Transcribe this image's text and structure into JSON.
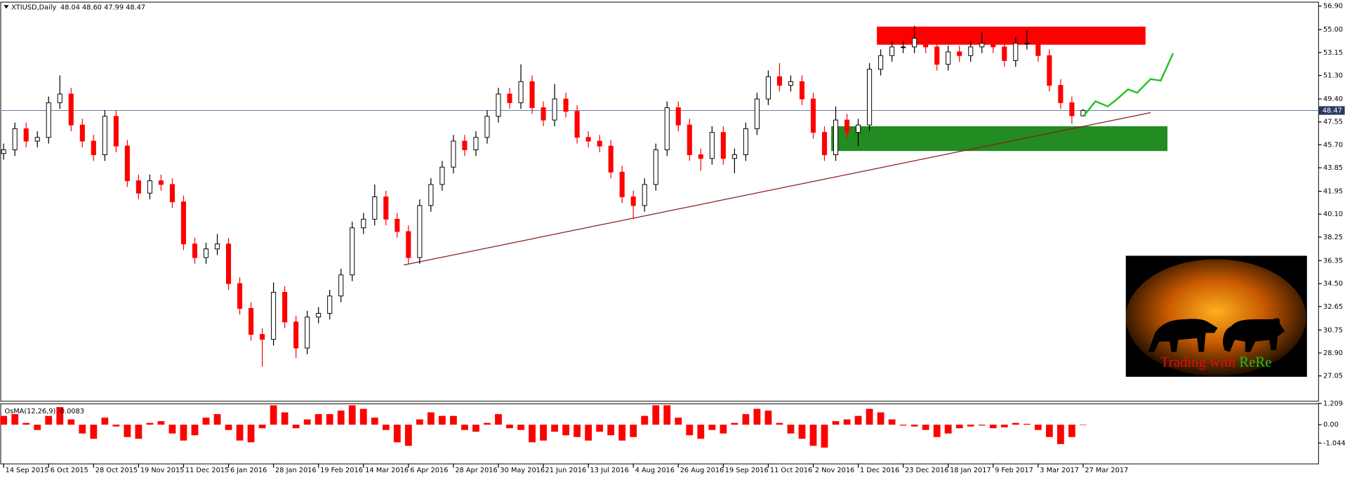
{
  "chart_data": [
    {
      "type": "candlestick",
      "title": "XTIUSD,Daily",
      "subtitle": "48.04 48.60 47.99 48.47",
      "bull_color": "#000000",
      "bear_color": "#ff0000",
      "open": [
        45.0,
        45.3,
        47.0,
        46.0,
        46.3,
        49.1,
        49.8,
        47.3,
        46.0,
        44.9,
        48.0,
        45.6,
        42.8,
        41.8,
        42.8,
        42.5,
        41.1,
        37.7,
        36.6,
        37.3,
        37.7,
        34.5,
        32.5,
        30.4,
        30.0,
        33.8,
        31.4,
        29.3,
        31.8,
        32.1,
        33.5,
        35.2,
        39.0,
        39.7,
        41.5,
        39.7,
        38.7,
        36.6,
        40.8,
        42.5,
        43.9,
        46.0,
        45.3,
        46.3,
        48.0,
        49.8,
        49.1,
        50.8,
        48.7,
        47.7,
        49.4,
        48.4,
        46.3,
        46.0,
        45.6,
        43.5,
        41.5,
        40.8,
        42.5,
        45.3,
        48.7,
        47.3,
        44.9,
        44.6,
        46.7,
        44.6,
        44.9,
        47.0,
        49.4,
        51.2,
        50.5,
        50.8,
        49.4,
        46.7,
        44.9,
        47.7,
        46.7,
        47.3,
        51.8,
        52.9,
        53.6,
        53.6,
        54.3,
        53.6,
        52.2,
        53.2,
        52.9,
        53.6,
        53.9,
        53.6,
        52.5,
        53.9,
        53.9,
        52.9,
        50.5,
        49.1,
        48.04
      ],
      "high": [
        45.8,
        47.5,
        47.5,
        46.8,
        49.6,
        51.3,
        50.3,
        47.8,
        46.5,
        48.5,
        48.5,
        46.1,
        43.3,
        43.3,
        43.3,
        43.0,
        41.6,
        38.2,
        37.8,
        38.5,
        38.2,
        35.0,
        33.0,
        30.9,
        34.6,
        34.3,
        31.9,
        32.3,
        32.6,
        34.0,
        35.7,
        39.5,
        40.2,
        42.5,
        42.0,
        40.2,
        39.2,
        41.3,
        43.0,
        44.4,
        46.5,
        46.5,
        46.8,
        48.5,
        50.3,
        50.3,
        52.2,
        51.3,
        49.2,
        50.6,
        49.9,
        48.9,
        46.8,
        46.5,
        46.1,
        44.0,
        42.0,
        43.0,
        45.8,
        49.2,
        49.2,
        47.8,
        45.4,
        47.2,
        47.2,
        45.4,
        47.5,
        49.9,
        51.7,
        52.3,
        51.3,
        51.3,
        49.9,
        47.2,
        48.8,
        48.2,
        47.8,
        52.3,
        53.4,
        54.1,
        54.1,
        55.3,
        54.8,
        54.1,
        53.7,
        53.7,
        54.1,
        54.8,
        54.4,
        54.1,
        54.4,
        55.0,
        54.4,
        53.4,
        51.0,
        49.6,
        48.6
      ],
      "low": [
        44.5,
        44.8,
        45.5,
        45.5,
        45.8,
        48.6,
        46.8,
        45.5,
        44.4,
        44.4,
        45.1,
        42.3,
        41.3,
        41.3,
        42.0,
        40.6,
        37.2,
        36.1,
        36.1,
        36.8,
        34.0,
        32.0,
        29.9,
        27.8,
        29.5,
        30.9,
        28.5,
        28.8,
        31.3,
        31.6,
        33.0,
        34.7,
        38.5,
        39.2,
        39.2,
        38.2,
        36.1,
        36.1,
        40.3,
        42.0,
        43.4,
        44.8,
        44.8,
        45.8,
        47.5,
        48.6,
        48.6,
        48.2,
        47.2,
        47.2,
        47.9,
        45.8,
        45.5,
        45.1,
        43.0,
        41.0,
        39.7,
        40.3,
        42.0,
        44.8,
        46.8,
        44.4,
        43.6,
        44.1,
        44.1,
        43.4,
        44.4,
        46.5,
        48.9,
        50.0,
        50.0,
        48.9,
        46.2,
        44.4,
        44.4,
        46.2,
        45.6,
        46.8,
        51.3,
        52.4,
        53.1,
        53.1,
        53.1,
        51.7,
        51.7,
        52.4,
        52.4,
        53.1,
        53.1,
        52.0,
        52.0,
        53.4,
        52.4,
        50.0,
        48.6,
        47.4,
        47.99
      ],
      "close": [
        45.3,
        47.0,
        46.0,
        46.3,
        49.1,
        49.8,
        47.3,
        46.0,
        44.9,
        48.0,
        45.6,
        42.8,
        41.8,
        42.8,
        42.5,
        41.1,
        37.7,
        36.6,
        37.3,
        37.7,
        34.5,
        32.5,
        30.4,
        30.0,
        33.8,
        31.4,
        29.3,
        31.8,
        32.1,
        33.5,
        35.2,
        39.0,
        39.7,
        41.5,
        39.7,
        38.7,
        36.6,
        40.8,
        42.5,
        43.9,
        46.0,
        45.3,
        46.3,
        48.0,
        49.8,
        49.1,
        50.8,
        48.7,
        47.7,
        49.4,
        48.4,
        46.3,
        46.0,
        45.6,
        43.5,
        41.5,
        40.8,
        42.5,
        45.3,
        48.7,
        47.3,
        44.9,
        44.6,
        46.7,
        44.6,
        44.9,
        47.0,
        49.4,
        51.2,
        50.5,
        50.8,
        49.4,
        46.7,
        44.9,
        47.7,
        46.7,
        47.3,
        51.8,
        52.9,
        53.6,
        53.6,
        54.3,
        53.6,
        52.2,
        53.2,
        52.9,
        53.6,
        53.9,
        53.6,
        52.5,
        53.9,
        53.9,
        52.9,
        50.5,
        49.1,
        48.04,
        48.47
      ],
      "xlim": [
        -0.3,
        116.9
      ],
      "xticks": [
        {
          "value": 0,
          "label": "14 Sep 2015"
        },
        {
          "value": 4,
          "label": "6 Oct 2015"
        },
        {
          "value": 8,
          "label": "28 Oct 2015"
        },
        {
          "value": 12,
          "label": "19 Nov 2015"
        },
        {
          "value": 16,
          "label": "11 Dec 2015"
        },
        {
          "value": 20,
          "label": "6 Jan 2016"
        },
        {
          "value": 24,
          "label": "28 Jan 2016"
        },
        {
          "value": 28,
          "label": "19 Feb 2016"
        },
        {
          "value": 32,
          "label": "14 Mar 2016"
        },
        {
          "value": 36,
          "label": "6 Apr 2016"
        },
        {
          "value": 40,
          "label": "28 Apr 2016"
        },
        {
          "value": 44,
          "label": "30 May 2016"
        },
        {
          "value": 48,
          "label": "21 Jun 2016"
        },
        {
          "value": 52,
          "label": "13 Jul 2016"
        },
        {
          "value": 56,
          "label": "4 Aug 2016"
        },
        {
          "value": 60,
          "label": "26 Aug 2016"
        },
        {
          "value": 64,
          "label": "19 Sep 2016"
        },
        {
          "value": 68,
          "label": "11 Oct 2016"
        },
        {
          "value": 72,
          "label": "2 Nov 2016"
        },
        {
          "value": 76,
          "label": "1 Dec 2016"
        },
        {
          "value": 80,
          "label": "23 Dec 2016"
        },
        {
          "value": 84,
          "label": "18 Jan 2017"
        },
        {
          "value": 88,
          "label": "9 Feb 2017"
        },
        {
          "value": 92,
          "label": "3 Mar 2017"
        },
        {
          "value": 96,
          "label": "27 Mar 2017"
        }
      ],
      "ylim": [
        25.04,
        57.25
      ],
      "yticks": [
        {
          "value": 56.9,
          "label": "56.90"
        },
        {
          "value": 55,
          "label": "55.00"
        },
        53.15,
        {
          "value": 51.3,
          "label": "51.30"
        },
        {
          "value": 49.4,
          "label": "49.40"
        },
        47.55,
        {
          "value": 45.7,
          "label": "45.70"
        },
        43.85,
        41.95,
        {
          "value": 40.1,
          "label": "40.10"
        },
        38.25,
        36.35,
        {
          "value": 34.5,
          "label": "34.50"
        },
        32.65,
        30.75,
        {
          "value": 28.9,
          "label": "28.90"
        },
        27.05
      ],
      "price_line": {
        "value": 48.47,
        "label": "48.47",
        "color": "#6a7ea6"
      },
      "zones": [
        {
          "color": "#ff0000",
          "xlim": [
            77.66,
            101.55
          ],
          "ylim": [
            53.78,
            55.24
          ]
        },
        {
          "color": "#228b22",
          "xlim": [
            73.6,
            103.5
          ],
          "ylim": [
            45.2,
            47.2
          ]
        }
      ],
      "trendline": {
        "color": "#8b1a1a",
        "x": [
          35.59,
          102.0
        ],
        "values": [
          36.0,
          48.3
        ]
      },
      "forecast": {
        "color": "#22c422",
        "x": [
          96.06,
          97.1,
          98.2,
          98.96,
          100.0,
          100.8,
          102.0,
          102.9,
          104.0
        ],
        "values": [
          48.04,
          49.21,
          48.8,
          49.35,
          50.18,
          49.9,
          51.01,
          50.88,
          53.09
        ]
      },
      "logo": {
        "text": "Trading with",
        "name": "ReRe"
      }
    },
    {
      "type": "bar",
      "title": "OsMA(12,26,9) -0.0083",
      "color": "#ff0000",
      "values": [
        0.5,
        0.6,
        0.1,
        -0.3,
        0.5,
        1.0,
        0.3,
        -0.5,
        -0.8,
        0.4,
        -0.1,
        -0.7,
        -0.8,
        0.1,
        0.2,
        -0.5,
        -0.9,
        -0.6,
        0.4,
        0.6,
        -0.3,
        -0.9,
        -1.0,
        -0.2,
        1.1,
        0.7,
        -0.2,
        0.3,
        0.6,
        0.6,
        0.8,
        1.1,
        0.9,
        0.4,
        -0.3,
        -1.0,
        -1.2,
        0.3,
        0.7,
        0.5,
        0.5,
        -0.3,
        -0.4,
        0.1,
        0.6,
        -0.2,
        -0.3,
        -1.0,
        -0.9,
        -0.4,
        -0.6,
        -0.7,
        -0.9,
        -0.4,
        -0.6,
        -0.9,
        -0.7,
        0.5,
        1.1,
        1.1,
        0.4,
        -0.6,
        -0.8,
        -0.3,
        -0.5,
        0.1,
        0.6,
        0.9,
        0.8,
        0.1,
        -0.5,
        -0.8,
        -1.2,
        -1.3,
        0.2,
        0.3,
        0.5,
        0.9,
        0.7,
        0.3,
        -0.05,
        -0.1,
        -0.3,
        -0.7,
        -0.5,
        -0.2,
        -0.1,
        -0.05,
        -0.2,
        -0.15,
        0.1,
        0.05,
        -0.3,
        -0.7,
        -1.1,
        -0.7,
        -0.0083
      ],
      "ylim": [
        -2.2,
        1.209
      ],
      "yticks": [
        1.209,
        {
          "value": 0,
          "label": "0.00"
        },
        -1.0447
      ]
    }
  ]
}
